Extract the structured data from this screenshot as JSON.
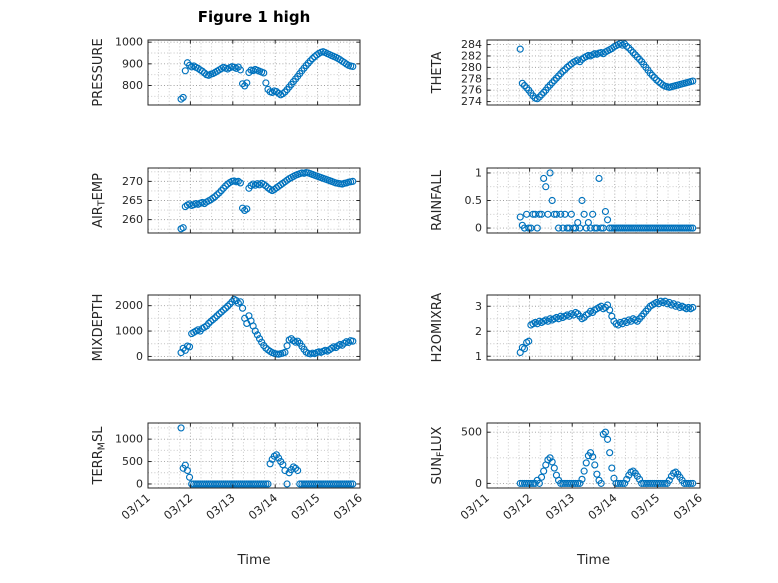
{
  "figure": {
    "title": "Figure 1 high",
    "xlabel": "Time",
    "marker_color": "#0072BD",
    "axis_color": "#262626",
    "grid_major_color": "#9f9f9f",
    "grid_minor_color": "#c4c4c4"
  },
  "chart_data": {
    "type": "scatter",
    "layout": {
      "rows": 4,
      "cols": 2,
      "grid": "dotted",
      "legend": "none",
      "shared_x_axis": true
    },
    "xlabel": "Time",
    "xlim": [
      0,
      5
    ],
    "x_tick_labels": [
      "03/11",
      "03/12",
      "03/13",
      "03/14",
      "03/15",
      "03/16"
    ],
    "x_note": "days after 03/11 00:00",
    "x_days": [
      0.78,
      0.83,
      0.88,
      0.93,
      0.98,
      1.03,
      1.08,
      1.13,
      1.18,
      1.23,
      1.28,
      1.33,
      1.38,
      1.43,
      1.48,
      1.53,
      1.58,
      1.63,
      1.68,
      1.73,
      1.78,
      1.83,
      1.88,
      1.93,
      1.98,
      2.03,
      2.08,
      2.13,
      2.18,
      2.23,
      2.28,
      2.33,
      2.38,
      2.43,
      2.48,
      2.53,
      2.58,
      2.63,
      2.68,
      2.73,
      2.78,
      2.83,
      2.88,
      2.93,
      2.98,
      3.03,
      3.08,
      3.13,
      3.18,
      3.23,
      3.28,
      3.33,
      3.38,
      3.43,
      3.48,
      3.53,
      3.58,
      3.63,
      3.68,
      3.73,
      3.78,
      3.83,
      3.88,
      3.93,
      3.98,
      4.03,
      4.08,
      4.13,
      4.18,
      4.23,
      4.28,
      4.33,
      4.38,
      4.43,
      4.48,
      4.53,
      4.58,
      4.63,
      4.68,
      4.73,
      4.78,
      4.83
    ],
    "charts": [
      {
        "name": "pressure",
        "ylabel_parts": [
          {
            "text": "PRESSURE",
            "sub": false
          }
        ],
        "yticks": [
          800,
          900,
          1000
        ],
        "ylim": [
          710,
          1010
        ],
        "y": [
          737,
          745,
          868,
          905,
          893,
          886,
          890,
          884,
          879,
          872,
          866,
          858,
          850,
          847,
          852,
          855,
          860,
          866,
          872,
          878,
          884,
          880,
          876,
          882,
          887,
          884,
          879,
          885,
          872,
          808,
          798,
          812,
          860,
          871,
          869,
          874,
          870,
          866,
          862,
          858,
          812,
          782,
          771,
          768,
          775,
          772,
          764,
          757,
          762,
          770,
          781,
          793,
          805,
          818,
          830,
          842,
          855,
          868,
          880,
          892,
          903,
          914,
          924,
          933,
          941,
          948,
          953,
          956,
          952,
          947,
          943,
          938,
          934,
          930,
          925,
          919,
          912,
          906,
          899,
          893,
          890,
          888
        ]
      },
      {
        "name": "theta",
        "ylabel_parts": [
          {
            "text": "THETA",
            "sub": false
          }
        ],
        "yticks": [
          274,
          276,
          278,
          280,
          282,
          284
        ],
        "ylim": [
          273.4,
          284.8
        ],
        "y": [
          283.2,
          277.2,
          276.8,
          276.4,
          276.0,
          275.5,
          275.0,
          274.6,
          274.5,
          274.8,
          275.2,
          275.6,
          276.0,
          276.5,
          276.9,
          277.3,
          277.7,
          278.1,
          278.5,
          278.9,
          279.3,
          279.6,
          280.0,
          280.3,
          280.6,
          280.9,
          281.1,
          281.3,
          281.0,
          281.4,
          281.7,
          281.9,
          282.1,
          282.0,
          282.2,
          282.4,
          282.3,
          282.5,
          282.6,
          282.4,
          282.7,
          282.9,
          283.1,
          283.3,
          283.6,
          283.8,
          284.0,
          284.2,
          283.9,
          284.1,
          283.7,
          283.4,
          283.0,
          282.6,
          282.2,
          281.8,
          281.4,
          281.0,
          280.5,
          280.0,
          279.5,
          279.0,
          278.6,
          278.2,
          277.8,
          277.5,
          277.2,
          276.9,
          276.7,
          276.6,
          276.5,
          276.6,
          276.7,
          276.8,
          276.9,
          277.0,
          277.1,
          277.2,
          277.3,
          277.4,
          277.5,
          277.6
        ]
      },
      {
        "name": "air_temp",
        "ylabel_parts": [
          {
            "text": "AIR",
            "sub": false
          },
          {
            "text": "T",
            "sub": true
          },
          {
            "text": "EMP",
            "sub": false
          }
        ],
        "yticks": [
          260,
          265,
          270
        ],
        "ylim": [
          256.5,
          273.5
        ],
        "y": [
          257.6,
          257.9,
          263.4,
          263.8,
          264.1,
          263.7,
          263.9,
          264.2,
          264.0,
          264.3,
          264.5,
          264.2,
          264.6,
          264.9,
          265.2,
          265.6,
          266.0,
          266.5,
          267.0,
          267.6,
          268.2,
          268.8,
          269.3,
          269.7,
          270.0,
          270.1,
          269.9,
          270.0,
          269.6,
          263.0,
          262.4,
          262.8,
          268.2,
          268.9,
          269.3,
          269.0,
          269.4,
          269.1,
          269.5,
          269.2,
          268.8,
          268.3,
          267.9,
          267.6,
          267.9,
          268.3,
          268.7,
          269.1,
          269.5,
          269.9,
          270.3,
          270.7,
          271.0,
          271.3,
          271.6,
          271.8,
          272.0,
          272.2,
          272.1,
          272.3,
          272.2,
          272.0,
          271.8,
          271.6,
          271.4,
          271.2,
          271.0,
          270.8,
          270.6,
          270.4,
          270.2,
          270.0,
          269.8,
          269.6,
          269.5,
          269.4,
          269.3,
          269.5,
          269.6,
          269.8,
          269.9,
          270.0
        ]
      },
      {
        "name": "rainfall",
        "ylabel_parts": [
          {
            "text": "RAINFALL",
            "sub": false
          }
        ],
        "yticks": [
          0,
          0.5,
          1
        ],
        "ylim": [
          -0.09,
          1.09
        ],
        "y": [
          0.2,
          0.05,
          0,
          0.25,
          0,
          0,
          0.25,
          0.25,
          0,
          0.25,
          0.25,
          0.9,
          0.75,
          0.25,
          1.0,
          0.5,
          0.25,
          0.25,
          0,
          0.25,
          0,
          0.25,
          0,
          0,
          0.25,
          0,
          0,
          0.1,
          0,
          0.5,
          0.25,
          0,
          0.1,
          0,
          0.25,
          0,
          0,
          0.9,
          0,
          0,
          0.3,
          0.15,
          0,
          0,
          0,
          0,
          0,
          0,
          0,
          0,
          0,
          0,
          0,
          0,
          0,
          0,
          0,
          0,
          0,
          0,
          0,
          0,
          0,
          0,
          0,
          0,
          0,
          0,
          0,
          0,
          0,
          0,
          0,
          0,
          0,
          0,
          0,
          0,
          0,
          0,
          0,
          0
        ]
      },
      {
        "name": "mixdepth",
        "ylabel_parts": [
          {
            "text": "MIXDEPTH",
            "sub": false
          }
        ],
        "yticks": [
          0,
          1000,
          2000
        ],
        "ylim": [
          -140,
          2420
        ],
        "y": [
          150,
          320,
          240,
          410,
          380,
          900,
          950,
          1000,
          1050,
          1000,
          1100,
          1150,
          1200,
          1300,
          1380,
          1450,
          1520,
          1600,
          1680,
          1750,
          1830,
          1900,
          1980,
          2060,
          2150,
          2250,
          2200,
          2100,
          2150,
          1900,
          1500,
          1300,
          1600,
          1400,
          1200,
          1000,
          850,
          700,
          560,
          430,
          330,
          260,
          200,
          150,
          120,
          100,
          90,
          110,
          130,
          160,
          420,
          650,
          700,
          620,
          560,
          600,
          520,
          400,
          280,
          170,
          120,
          100,
          130,
          110,
          150,
          180,
          160,
          200,
          240,
          210,
          260,
          320,
          380,
          350,
          420,
          470,
          440,
          520,
          580,
          550,
          620,
          600
        ]
      },
      {
        "name": "h2omixra",
        "ylabel_parts": [
          {
            "text": "H2OMIXRA",
            "sub": false
          }
        ],
        "yticks": [
          1,
          2,
          3
        ],
        "ylim": [
          0.85,
          3.45
        ],
        "y": [
          1.15,
          1.35,
          1.3,
          1.55,
          1.6,
          2.25,
          2.3,
          2.35,
          2.3,
          2.4,
          2.35,
          2.4,
          2.45,
          2.4,
          2.5,
          2.45,
          2.5,
          2.55,
          2.5,
          2.6,
          2.55,
          2.6,
          2.65,
          2.6,
          2.7,
          2.65,
          2.75,
          2.7,
          2.6,
          2.5,
          2.55,
          2.65,
          2.7,
          2.8,
          2.75,
          2.85,
          2.9,
          2.95,
          3.0,
          2.9,
          2.95,
          3.05,
          2.85,
          2.6,
          2.4,
          2.3,
          2.25,
          2.35,
          2.3,
          2.4,
          2.35,
          2.45,
          2.4,
          2.5,
          2.45,
          2.4,
          2.5,
          2.6,
          2.7,
          2.8,
          2.9,
          3.0,
          3.05,
          3.1,
          3.15,
          3.1,
          3.2,
          3.15,
          3.2,
          3.1,
          3.15,
          3.05,
          3.1,
          3.0,
          3.05,
          2.95,
          3.0,
          2.95,
          2.9,
          2.95,
          2.9,
          2.95
        ]
      },
      {
        "name": "terr_msl",
        "ylabel_parts": [
          {
            "text": "TERR",
            "sub": false
          },
          {
            "text": "M",
            "sub": true
          },
          {
            "text": "SL",
            "sub": false
          }
        ],
        "yticks": [
          0,
          500,
          1000
        ],
        "ylim": [
          -90,
          1360
        ],
        "y": [
          1250,
          350,
          420,
          300,
          150,
          0,
          0,
          0,
          0,
          0,
          0,
          0,
          0,
          0,
          0,
          0,
          0,
          0,
          0,
          0,
          0,
          0,
          0,
          0,
          0,
          0,
          0,
          0,
          0,
          0,
          0,
          0,
          0,
          0,
          0,
          0,
          0,
          0,
          0,
          0,
          0,
          0,
          450,
          550,
          620,
          650,
          580,
          500,
          430,
          300,
          0,
          250,
          320,
          380,
          350,
          300,
          0,
          0,
          0,
          0,
          0,
          0,
          0,
          0,
          0,
          0,
          0,
          0,
          0,
          0,
          0,
          0,
          0,
          0,
          0,
          0,
          0,
          0,
          0,
          0,
          0,
          0
        ]
      },
      {
        "name": "sun_flux",
        "ylabel_parts": [
          {
            "text": "SUN",
            "sub": false
          },
          {
            "text": "F",
            "sub": true
          },
          {
            "text": "LUX",
            "sub": false
          }
        ],
        "yticks": [
          0,
          500
        ],
        "ylim": [
          -45,
          590
        ],
        "y": [
          0,
          0,
          0,
          0,
          0,
          0,
          0,
          0,
          30,
          0,
          60,
          120,
          180,
          230,
          250,
          210,
          150,
          80,
          30,
          0,
          0,
          0,
          0,
          0,
          0,
          0,
          0,
          0,
          0,
          40,
          120,
          200,
          270,
          300,
          260,
          180,
          90,
          30,
          0,
          480,
          500,
          430,
          300,
          150,
          50,
          0,
          0,
          0,
          0,
          0,
          40,
          80,
          110,
          120,
          100,
          70,
          40,
          0,
          0,
          0,
          0,
          0,
          0,
          0,
          0,
          0,
          0,
          0,
          0,
          0,
          30,
          70,
          100,
          110,
          90,
          60,
          30,
          0,
          0,
          0,
          0,
          0
        ]
      }
    ]
  }
}
